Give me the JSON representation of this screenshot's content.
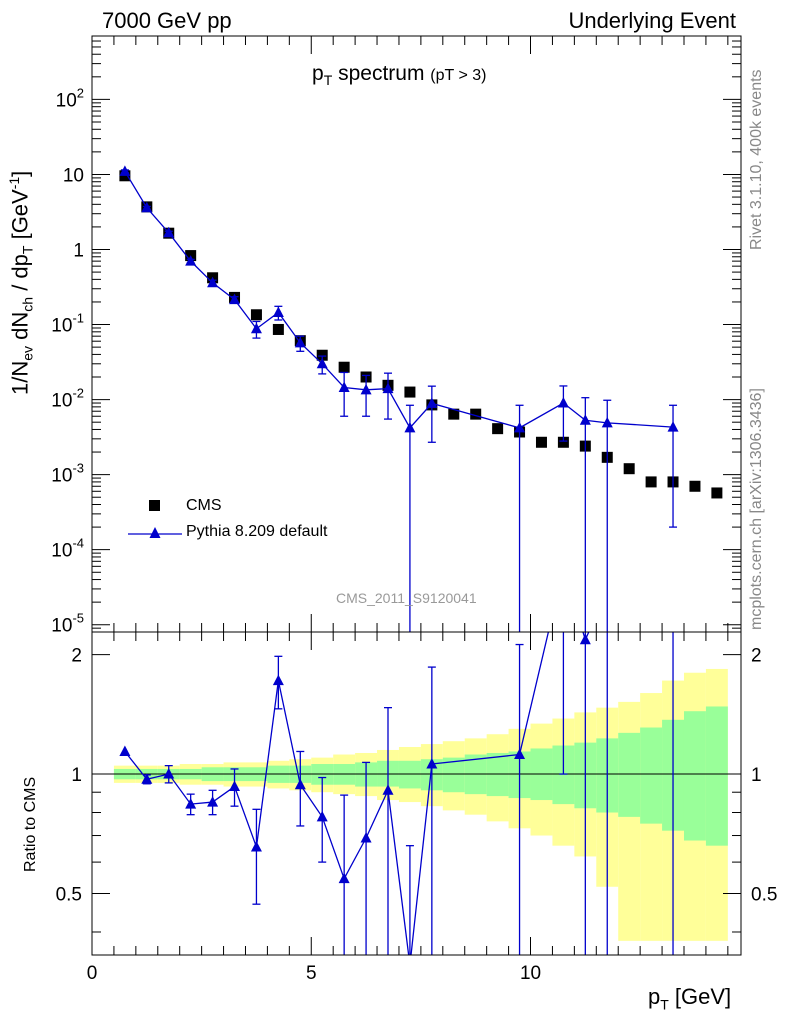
{
  "header": {
    "left": "7000 GeV pp",
    "right": "Underlying Event"
  },
  "side": {
    "rivet": "Rivet 3.1.10,  400k events",
    "mcplots": "mcplots.cern.ch [arXiv:1306.3436]"
  },
  "watermark": "CMS_2011_S9120041",
  "colors": {
    "mc": "#0000cc",
    "band_inner": "#99ff99",
    "band_outer": "#ffff99",
    "data": "#000000"
  },
  "chart_data": [
    {
      "type": "scatter",
      "panel": "main",
      "title_main": "p",
      "title_sub": "T",
      "title_rest": " spectrum",
      "title_cut": "(pT >  3)",
      "ylabel": "1/N_ev dN_ch / dp_T [GeV^-1]",
      "yscale": "log",
      "ylim": [
        8e-06,
        700
      ],
      "xlim": [
        0,
        14.8
      ],
      "y_tick_labels": [
        "10^-5",
        "10^-4",
        "10^-3",
        "10^-2",
        "10^-1",
        "1",
        "10",
        "10^2"
      ],
      "legend": {
        "placement": "bottom-left",
        "entries": [
          "CMS",
          "Pythia 8.209 default"
        ]
      },
      "series": [
        {
          "name": "CMS",
          "marker": "square",
          "points": [
            [
              0.75,
              9.6
            ],
            [
              1.25,
              3.7
            ],
            [
              1.75,
              1.65
            ],
            [
              2.25,
              0.83
            ],
            [
              2.75,
              0.42
            ],
            [
              3.25,
              0.23
            ],
            [
              3.75,
              0.135
            ],
            [
              4.25,
              0.086
            ],
            [
              4.75,
              0.061
            ],
            [
              5.25,
              0.039
            ],
            [
              5.75,
              0.027
            ],
            [
              6.25,
              0.02
            ],
            [
              6.75,
              0.0155
            ],
            [
              7.25,
              0.0126
            ],
            [
              7.75,
              0.0085
            ],
            [
              8.25,
              0.0064
            ],
            [
              8.75,
              0.0064
            ],
            [
              9.25,
              0.0041
            ],
            [
              9.75,
              0.0037
            ],
            [
              10.25,
              0.0027
            ],
            [
              10.75,
              0.0027
            ],
            [
              11.25,
              0.0024
            ],
            [
              11.75,
              0.0017
            ],
            [
              12.25,
              0.0012
            ],
            [
              12.75,
              0.0008
            ],
            [
              13.25,
              0.0008
            ],
            [
              13.75,
              0.0007
            ],
            [
              14.25,
              0.00057
            ]
          ]
        },
        {
          "name": "Pythia 8.209 default",
          "marker": "triangle",
          "points": [
            [
              0.75,
              11.0,
              0.5,
              0.5
            ],
            [
              1.25,
              3.6,
              0.15,
              0.15
            ],
            [
              1.75,
              1.67,
              0.08,
              0.08
            ],
            [
              2.25,
              0.7,
              0.04,
              0.04
            ],
            [
              2.75,
              0.36,
              0.03,
              0.03
            ],
            [
              3.25,
              0.215,
              0.02,
              0.02
            ],
            [
              3.75,
              0.088,
              0.022,
              0.022
            ],
            [
              4.25,
              0.145,
              0.03,
              0.03
            ],
            [
              4.75,
              0.057,
              0.013,
              0.013
            ],
            [
              5.25,
              0.03,
              0.008,
              0.008
            ],
            [
              5.75,
              0.0145,
              0.0085,
              0.0085
            ],
            [
              6.25,
              0.0135,
              0.0075,
              0.0075
            ],
            [
              6.75,
              0.014,
              0.0085,
              0.0085
            ],
            [
              7.25,
              0.0042,
              0.0042,
              0.0042
            ],
            [
              7.75,
              0.0089,
              0.0062,
              0.0062
            ],
            [
              9.75,
              0.0042,
              0.0042,
              0.0042
            ],
            [
              10.75,
              0.009,
              0.0062,
              0.0062
            ],
            [
              11.25,
              0.0053,
              0.0053,
              0.0053
            ],
            [
              11.75,
              0.0049,
              0.0049,
              0.0049
            ],
            [
              13.25,
              0.0043,
              0.0041,
              0.0041
            ]
          ]
        }
      ]
    },
    {
      "type": "scatter",
      "panel": "ratio",
      "ylabel": "Ratio to CMS",
      "xlabel_main": "p",
      "xlabel_sub": "T",
      "xlabel_rest": " [GeV]",
      "xlim": [
        0,
        14.8
      ],
      "ylim": [
        0.35,
        2.28
      ],
      "x_ticks": [
        0,
        5,
        10
      ],
      "y_ticks": [
        0.5,
        1,
        2
      ],
      "reference_line": 1,
      "bands": [
        {
          "lo_edge": 0.5,
          "hi_edge": 14.5,
          "edges": [
            0.5,
            1,
            1.5,
            2,
            2.5,
            3,
            3.5,
            4,
            4.5,
            5,
            5.5,
            6,
            6.5,
            7,
            7.5,
            8,
            8.5,
            9,
            9.5,
            10,
            10.5,
            11,
            11.5,
            12,
            12.5,
            13,
            13.5,
            14,
            14.5
          ],
          "outer": [
            [
              0.95,
              1.05
            ],
            [
              0.95,
              1.05
            ],
            [
              0.95,
              1.05
            ],
            [
              0.94,
              1.06
            ],
            [
              0.94,
              1.06
            ],
            [
              0.93,
              1.07
            ],
            [
              0.93,
              1.07
            ],
            [
              0.92,
              1.08
            ],
            [
              0.91,
              1.09
            ],
            [
              0.9,
              1.1
            ],
            [
              0.89,
              1.12
            ],
            [
              0.88,
              1.13
            ],
            [
              0.86,
              1.15
            ],
            [
              0.85,
              1.17
            ],
            [
              0.83,
              1.19
            ],
            [
              0.81,
              1.21
            ],
            [
              0.79,
              1.23
            ],
            [
              0.76,
              1.26
            ],
            [
              0.73,
              1.3
            ],
            [
              0.7,
              1.34
            ],
            [
              0.66,
              1.38
            ],
            [
              0.62,
              1.43
            ],
            [
              0.52,
              1.47
            ],
            [
              0.38,
              1.52
            ],
            [
              0.38,
              1.6
            ],
            [
              0.38,
              1.72
            ],
            [
              0.38,
              1.8
            ],
            [
              0.38,
              1.84
            ]
          ],
          "inner": [
            [
              0.97,
              1.03
            ],
            [
              0.97,
              1.03
            ],
            [
              0.97,
              1.03
            ],
            [
              0.97,
              1.03
            ],
            [
              0.96,
              1.04
            ],
            [
              0.96,
              1.04
            ],
            [
              0.96,
              1.04
            ],
            [
              0.95,
              1.05
            ],
            [
              0.95,
              1.05
            ],
            [
              0.94,
              1.06
            ],
            [
              0.94,
              1.06
            ],
            [
              0.93,
              1.07
            ],
            [
              0.93,
              1.08
            ],
            [
              0.92,
              1.08
            ],
            [
              0.91,
              1.09
            ],
            [
              0.9,
              1.1
            ],
            [
              0.89,
              1.12
            ],
            [
              0.88,
              1.13
            ],
            [
              0.87,
              1.14
            ],
            [
              0.86,
              1.16
            ],
            [
              0.84,
              1.18
            ],
            [
              0.82,
              1.2
            ],
            [
              0.8,
              1.23
            ],
            [
              0.78,
              1.27
            ],
            [
              0.75,
              1.31
            ],
            [
              0.72,
              1.37
            ],
            [
              0.68,
              1.44
            ],
            [
              0.66,
              1.48
            ]
          ]
        }
      ],
      "series": [
        {
          "name": "Pythia 8.209 default",
          "points": [
            [
              0.75,
              1.14,
              0,
              0
            ],
            [
              1.25,
              0.97,
              0.025,
              0.025
            ],
            [
              1.75,
              1.0,
              0.05,
              0.05
            ],
            [
              2.25,
              0.84,
              0.05,
              0.05
            ],
            [
              2.75,
              0.85,
              0.06,
              0.06
            ],
            [
              3.25,
              0.93,
              0.1,
              0.1
            ],
            [
              3.75,
              0.655,
              0.185,
              0.16
            ],
            [
              4.25,
              1.72,
              0.26,
              0.26
            ],
            [
              4.75,
              0.94,
              0.2,
              0.2
            ],
            [
              5.25,
              0.78,
              0.18,
              0.2
            ],
            [
              5.75,
              0.545,
              0.3,
              0.34
            ],
            [
              6.25,
              0.69,
              0.38,
              0.38
            ],
            [
              6.75,
              0.91,
              0.56,
              0.56
            ],
            [
              7.25,
              0.33,
              0.33,
              0.33
            ],
            [
              7.75,
              1.06,
              0.74,
              0.8
            ],
            [
              9.75,
              1.12,
              1.12,
              1.0
            ],
            [
              10.75,
              3.3,
              2.3,
              2.3
            ],
            [
              11.25,
              2.18,
              2.18,
              2.2
            ],
            [
              11.75,
              2.9,
              2.9,
              2.9
            ],
            [
              13.25,
              5.3,
              5.0,
              5.0
            ]
          ]
        }
      ]
    }
  ]
}
